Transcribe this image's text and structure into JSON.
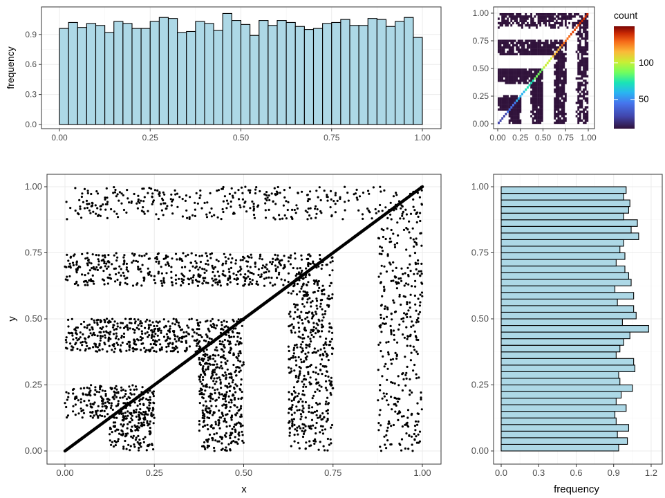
{
  "colors": {
    "bar_fill": "#add8e6",
    "bar_stroke": "#000000",
    "point": "#000000",
    "grid_major": "#ebebeb",
    "grid_minor": "#f5f5f5",
    "panel_border": "#333333",
    "tick_text": "#4d4d4d"
  },
  "chart_data": [
    {
      "id": "top-histogram",
      "type": "bar",
      "title": "",
      "xlabel": "",
      "ylabel": "frequency",
      "x_bins": {
        "start": 0,
        "width": 0.025,
        "count": 40
      },
      "values": [
        0.96,
        1.02,
        0.97,
        1.01,
        0.99,
        0.92,
        1.03,
        1.01,
        0.96,
        0.96,
        1.03,
        1.07,
        1.06,
        0.92,
        0.93,
        1.03,
        1.01,
        0.94,
        1.11,
        1.04,
        1.0,
        0.89,
        1.04,
        0.99,
        1.04,
        1.02,
        0.98,
        0.95,
        0.96,
        1.01,
        1.02,
        1.05,
        0.99,
        0.99,
        1.06,
        1.05,
        0.98,
        1.03,
        1.07,
        0.87
      ],
      "xlim": [
        0,
        1
      ],
      "ylim": [
        0,
        1.12
      ],
      "xticks": [
        "0.00",
        "0.25",
        "0.50",
        "0.75",
        "1.00"
      ],
      "yticks": [
        "0.0",
        "0.3",
        "0.6",
        "0.9"
      ],
      "grid": true
    },
    {
      "id": "heatmap-2d",
      "type": "heatmap",
      "title": "",
      "xlabel": "",
      "ylabel": "",
      "xlim": [
        0,
        1
      ],
      "ylim": [
        0,
        1
      ],
      "xticks": [
        "0.00",
        "0.25",
        "0.50",
        "0.75",
        "1.00"
      ],
      "yticks": [
        "0.00",
        "0.25",
        "0.50",
        "0.75",
        "1.00"
      ],
      "legend": {
        "title": "count",
        "ticks": [
          "50",
          "100"
        ],
        "range": [
          10,
          150
        ],
        "placement": "right"
      },
      "grid": true
    },
    {
      "id": "scatter-main",
      "type": "scatter",
      "title": "",
      "xlabel": "x",
      "ylabel": "y",
      "xlim": [
        0,
        1
      ],
      "ylim": [
        0,
        1
      ],
      "xticks": [
        "0.00",
        "0.25",
        "0.50",
        "0.75",
        "1.00"
      ],
      "yticks": [
        "0.00",
        "0.25",
        "0.50",
        "0.75",
        "1.00"
      ],
      "regions": [
        {
          "x": [
            0.0,
            0.25
          ],
          "y": [
            0.125,
            0.25
          ],
          "density": "high"
        },
        {
          "x": [
            0.125,
            0.25
          ],
          "y": [
            0.0,
            0.125
          ],
          "density": "high"
        },
        {
          "x": [
            0.0,
            0.5
          ],
          "y": [
            0.375,
            0.5
          ],
          "density": "high"
        },
        {
          "x": [
            0.375,
            0.5
          ],
          "y": [
            0.0,
            0.375
          ],
          "density": "high"
        },
        {
          "x": [
            0.0,
            0.75
          ],
          "y": [
            0.625,
            0.75
          ],
          "density": "medium"
        },
        {
          "x": [
            0.625,
            0.75
          ],
          "y": [
            0.0,
            0.625
          ],
          "density": "medium"
        },
        {
          "x": [
            0.0,
            1.0
          ],
          "y": [
            0.875,
            1.0
          ],
          "density": "low"
        },
        {
          "x": [
            0.875,
            1.0
          ],
          "y": [
            0.0,
            0.875
          ],
          "density": "low"
        }
      ],
      "diagonal_line": {
        "from": [
          0,
          0
        ],
        "to": [
          1,
          1
        ]
      },
      "grid": true
    },
    {
      "id": "right-histogram",
      "type": "bar",
      "orientation": "horizontal",
      "title": "",
      "xlabel": "frequency",
      "ylabel": "",
      "y_bins": {
        "start": 0,
        "width": 0.025,
        "count": 40
      },
      "values": [
        0.94,
        1.01,
        0.93,
        1.02,
        0.92,
        0.91,
        1.0,
        0.92,
        0.96,
        1.05,
        0.95,
        0.94,
        1.07,
        1.06,
        0.92,
        0.95,
        0.98,
        1.03,
        1.18,
        0.97,
        1.08,
        1.06,
        0.93,
        1.06,
        0.91,
        1.04,
        1.02,
        0.99,
        0.92,
        0.99,
        0.95,
        0.98,
        1.1,
        1.04,
        1.09,
        0.98,
        1.02,
        1.03,
        0.98,
        1.0
      ],
      "xlim": [
        0,
        1.25
      ],
      "ylim": [
        0,
        1
      ],
      "xticks": [
        "0.0",
        "0.3",
        "0.6",
        "0.9",
        "1.2"
      ],
      "yticks": [
        "0.00",
        "0.25",
        "0.50",
        "0.75",
        "1.00"
      ],
      "grid": true
    }
  ]
}
